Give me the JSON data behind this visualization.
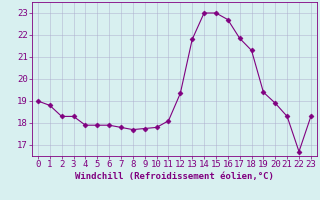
{
  "x": [
    0,
    1,
    2,
    3,
    4,
    5,
    6,
    7,
    8,
    9,
    10,
    11,
    12,
    13,
    14,
    15,
    16,
    17,
    18,
    19,
    20,
    21,
    22,
    23
  ],
  "y": [
    19.0,
    18.8,
    18.3,
    18.3,
    17.9,
    17.9,
    17.9,
    17.8,
    17.7,
    17.75,
    17.8,
    18.1,
    19.35,
    21.8,
    23.0,
    23.0,
    22.7,
    21.85,
    21.3,
    19.4,
    18.9,
    18.3,
    16.7,
    18.3
  ],
  "line_color": "#800080",
  "marker": "D",
  "marker_size": 2.5,
  "bg_color": "#d8f0f0",
  "grid_color": "#aaaacc",
  "xlabel": "Windchill (Refroidissement éolien,°C)",
  "xlabel_fontsize": 6.5,
  "tick_fontsize": 6.5,
  "ylim": [
    16.5,
    23.5
  ],
  "xlim": [
    -0.5,
    23.5
  ],
  "yticks": [
    17,
    18,
    19,
    20,
    21,
    22,
    23
  ],
  "xticks": [
    0,
    1,
    2,
    3,
    4,
    5,
    6,
    7,
    8,
    9,
    10,
    11,
    12,
    13,
    14,
    15,
    16,
    17,
    18,
    19,
    20,
    21,
    22,
    23
  ],
  "tick_color": "#800080",
  "spine_color": "#800080",
  "figsize": [
    3.2,
    2.0
  ],
  "dpi": 100
}
